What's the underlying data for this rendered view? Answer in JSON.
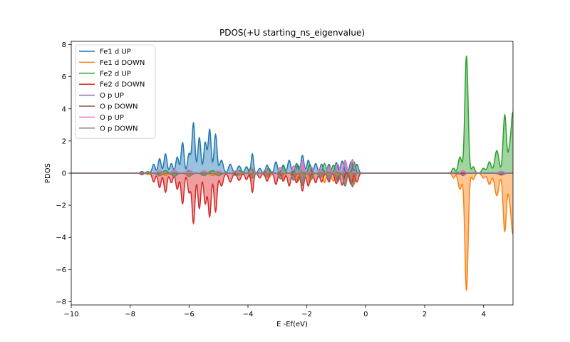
{
  "chart_data": {
    "type": "area",
    "title": "PDOS(+U starting_ns_eigenvalue)",
    "xlabel": "E -Ef(eV)",
    "ylabel": "PDOS",
    "xlim": [
      -10,
      5
    ],
    "ylim": [
      -8.2,
      8.2
    ],
    "xticks": [
      -10,
      -8,
      -6,
      -4,
      -2,
      0,
      2,
      4
    ],
    "yticks": [
      -8,
      -6,
      -4,
      -2,
      0,
      2,
      4,
      6,
      8
    ],
    "legend_position": "upper-left",
    "grid": false,
    "series": [
      {
        "name": "Fe1 d UP",
        "color": "#1f77b4",
        "sign": 1,
        "peaks": [
          [
            -7.6,
            0.1,
            0.05
          ],
          [
            -7.2,
            0.55,
            0.05
          ],
          [
            -7.0,
            0.9,
            0.05
          ],
          [
            -6.8,
            1.2,
            0.05
          ],
          [
            -6.6,
            0.6,
            0.05
          ],
          [
            -6.4,
            1.0,
            0.05
          ],
          [
            -6.22,
            1.9,
            0.05
          ],
          [
            -6.0,
            1.2,
            0.05
          ],
          [
            -5.85,
            3.1,
            0.05
          ],
          [
            -5.65,
            2.2,
            0.05
          ],
          [
            -5.45,
            1.9,
            0.05
          ],
          [
            -5.3,
            2.7,
            0.05
          ],
          [
            -5.1,
            2.4,
            0.05
          ],
          [
            -4.9,
            0.8,
            0.06
          ],
          [
            -4.6,
            0.55,
            0.06
          ],
          [
            -4.3,
            0.45,
            0.06
          ],
          [
            -4.05,
            0.4,
            0.05
          ],
          [
            -3.85,
            1.2,
            0.04
          ],
          [
            -3.6,
            0.3,
            0.05
          ],
          [
            -3.35,
            0.5,
            0.05
          ],
          [
            -3.05,
            0.7,
            0.05
          ],
          [
            -2.8,
            0.5,
            0.05
          ],
          [
            -2.6,
            0.8,
            0.05
          ],
          [
            -2.35,
            0.6,
            0.05
          ],
          [
            -2.15,
            1.1,
            0.05
          ],
          [
            -1.95,
            0.8,
            0.05
          ],
          [
            -1.7,
            0.6,
            0.05
          ],
          [
            -1.5,
            0.55,
            0.05
          ],
          [
            -1.25,
            0.55,
            0.05
          ],
          [
            -1.0,
            0.65,
            0.05
          ],
          [
            -0.8,
            0.75,
            0.05
          ],
          [
            -0.5,
            0.7,
            0.05
          ],
          [
            -0.3,
            0.55,
            0.05
          ],
          [
            3.1,
            0.05,
            0.06
          ],
          [
            4.6,
            0.08,
            0.1
          ]
        ]
      },
      {
        "name": "Fe1 d DOWN",
        "color": "#ff7f0e",
        "sign": -1,
        "peaks": [
          [
            -7.4,
            0.1,
            0.05
          ],
          [
            -6.8,
            0.15,
            0.08
          ],
          [
            -6.0,
            0.15,
            0.1
          ],
          [
            -5.2,
            0.15,
            0.1
          ],
          [
            -4.3,
            0.15,
            0.1
          ],
          [
            -3.9,
            0.35,
            0.05
          ],
          [
            -3.3,
            0.3,
            0.06
          ],
          [
            -2.8,
            0.4,
            0.06
          ],
          [
            -2.3,
            0.5,
            0.06
          ],
          [
            -1.9,
            0.55,
            0.05
          ],
          [
            -1.4,
            0.6,
            0.05
          ],
          [
            -1.1,
            0.5,
            0.05
          ],
          [
            -0.7,
            0.8,
            0.05
          ],
          [
            -0.4,
            0.7,
            0.05
          ],
          [
            2.98,
            0.3,
            0.05
          ],
          [
            3.2,
            1.0,
            0.06
          ],
          [
            3.42,
            7.3,
            0.055
          ],
          [
            3.65,
            0.4,
            0.05
          ],
          [
            4.0,
            0.3,
            0.06
          ],
          [
            4.2,
            0.7,
            0.06
          ],
          [
            4.45,
            1.4,
            0.07
          ],
          [
            4.72,
            3.6,
            0.055
          ],
          [
            4.9,
            1.6,
            0.06
          ],
          [
            5.0,
            3.3,
            0.05
          ]
        ]
      },
      {
        "name": "Fe2 d UP",
        "color": "#2ca02c",
        "sign": 1,
        "peaks": [
          [
            -7.4,
            0.1,
            0.05
          ],
          [
            -6.8,
            0.15,
            0.08
          ],
          [
            -6.0,
            0.15,
            0.1
          ],
          [
            -5.2,
            0.15,
            0.1
          ],
          [
            -4.3,
            0.15,
            0.1
          ],
          [
            -3.9,
            0.35,
            0.05
          ],
          [
            -3.3,
            0.3,
            0.06
          ],
          [
            -2.8,
            0.4,
            0.06
          ],
          [
            -2.3,
            0.5,
            0.06
          ],
          [
            -1.9,
            0.55,
            0.05
          ],
          [
            -1.4,
            0.6,
            0.05
          ],
          [
            -1.1,
            0.5,
            0.05
          ],
          [
            -0.7,
            0.8,
            0.05
          ],
          [
            -0.4,
            0.7,
            0.05
          ],
          [
            2.98,
            0.3,
            0.05
          ],
          [
            3.2,
            1.0,
            0.06
          ],
          [
            3.42,
            7.3,
            0.055
          ],
          [
            3.65,
            0.4,
            0.05
          ],
          [
            4.0,
            0.3,
            0.06
          ],
          [
            4.2,
            0.7,
            0.06
          ],
          [
            4.45,
            1.4,
            0.07
          ],
          [
            4.72,
            3.6,
            0.055
          ],
          [
            4.9,
            1.6,
            0.06
          ],
          [
            5.0,
            3.3,
            0.05
          ]
        ]
      },
      {
        "name": "Fe2 d DOWN",
        "color": "#d62728",
        "sign": -1,
        "peaks": [
          [
            -7.6,
            0.1,
            0.05
          ],
          [
            -7.2,
            0.55,
            0.05
          ],
          [
            -7.0,
            0.9,
            0.05
          ],
          [
            -6.8,
            1.2,
            0.05
          ],
          [
            -6.6,
            0.6,
            0.05
          ],
          [
            -6.4,
            1.0,
            0.05
          ],
          [
            -6.22,
            1.9,
            0.05
          ],
          [
            -6.0,
            1.2,
            0.05
          ],
          [
            -5.85,
            3.1,
            0.05
          ],
          [
            -5.65,
            2.2,
            0.05
          ],
          [
            -5.45,
            1.9,
            0.05
          ],
          [
            -5.3,
            2.7,
            0.05
          ],
          [
            -5.1,
            2.4,
            0.05
          ],
          [
            -4.9,
            0.8,
            0.06
          ],
          [
            -4.6,
            0.55,
            0.06
          ],
          [
            -4.3,
            0.45,
            0.06
          ],
          [
            -4.05,
            0.4,
            0.05
          ],
          [
            -3.85,
            1.2,
            0.04
          ],
          [
            -3.6,
            0.3,
            0.05
          ],
          [
            -3.35,
            0.5,
            0.05
          ],
          [
            -3.05,
            0.7,
            0.05
          ],
          [
            -2.8,
            0.5,
            0.05
          ],
          [
            -2.6,
            0.8,
            0.05
          ],
          [
            -2.35,
            0.6,
            0.05
          ],
          [
            -2.15,
            1.1,
            0.05
          ],
          [
            -1.95,
            0.8,
            0.05
          ],
          [
            -1.7,
            0.6,
            0.05
          ],
          [
            -1.5,
            0.55,
            0.05
          ],
          [
            -1.25,
            0.55,
            0.05
          ],
          [
            -1.0,
            0.65,
            0.05
          ],
          [
            -0.8,
            0.75,
            0.05
          ],
          [
            -0.5,
            0.7,
            0.05
          ],
          [
            -0.3,
            0.55,
            0.05
          ],
          [
            3.1,
            0.05,
            0.06
          ],
          [
            4.6,
            0.08,
            0.1
          ]
        ]
      },
      {
        "name": "O p UP",
        "color": "#9467bd",
        "sign": 1,
        "peaks": [
          [
            -7.0,
            0.15,
            0.08
          ],
          [
            -6.5,
            0.2,
            0.08
          ],
          [
            -6.0,
            0.2,
            0.08
          ],
          [
            -5.5,
            0.15,
            0.08
          ],
          [
            -5.0,
            0.15,
            0.08
          ],
          [
            -4.4,
            0.15,
            0.08
          ],
          [
            -3.85,
            0.3,
            0.05
          ],
          [
            -3.4,
            0.25,
            0.05
          ],
          [
            -2.9,
            0.35,
            0.05
          ],
          [
            -2.45,
            0.45,
            0.05
          ],
          [
            -2.15,
            0.75,
            0.05
          ],
          [
            -1.85,
            0.4,
            0.05
          ],
          [
            -1.55,
            0.3,
            0.05
          ],
          [
            -1.25,
            0.4,
            0.05
          ],
          [
            -0.95,
            0.55,
            0.05
          ],
          [
            -0.7,
            0.8,
            0.05
          ],
          [
            -0.45,
            0.85,
            0.05
          ],
          [
            3.3,
            0.15,
            0.06
          ],
          [
            4.6,
            0.12,
            0.08
          ]
        ]
      },
      {
        "name": "O p DOWN",
        "color": "#8c564b",
        "sign": -1,
        "peaks": [
          [
            -7.0,
            0.15,
            0.08
          ],
          [
            -6.5,
            0.2,
            0.08
          ],
          [
            -6.0,
            0.2,
            0.08
          ],
          [
            -5.5,
            0.15,
            0.08
          ],
          [
            -5.0,
            0.15,
            0.08
          ],
          [
            -4.4,
            0.15,
            0.08
          ],
          [
            -3.85,
            0.3,
            0.05
          ],
          [
            -3.4,
            0.25,
            0.05
          ],
          [
            -2.9,
            0.35,
            0.05
          ],
          [
            -2.45,
            0.45,
            0.05
          ],
          [
            -2.15,
            0.75,
            0.05
          ],
          [
            -1.85,
            0.4,
            0.05
          ],
          [
            -1.55,
            0.3,
            0.05
          ],
          [
            -1.25,
            0.4,
            0.05
          ],
          [
            -0.95,
            0.55,
            0.05
          ],
          [
            -0.7,
            0.8,
            0.05
          ],
          [
            -0.45,
            0.85,
            0.05
          ],
          [
            3.3,
            0.15,
            0.06
          ],
          [
            4.6,
            0.12,
            0.08
          ]
        ]
      },
      {
        "name": "O p UP",
        "color": "#e377c2",
        "sign": 1,
        "peaks": [
          [
            -7.0,
            0.15,
            0.08
          ],
          [
            -6.5,
            0.2,
            0.08
          ],
          [
            -6.0,
            0.2,
            0.08
          ],
          [
            -5.5,
            0.15,
            0.08
          ],
          [
            -5.0,
            0.15,
            0.08
          ],
          [
            -4.4,
            0.15,
            0.08
          ],
          [
            -3.85,
            0.3,
            0.05
          ],
          [
            -3.4,
            0.25,
            0.05
          ],
          [
            -2.9,
            0.35,
            0.05
          ],
          [
            -2.45,
            0.45,
            0.05
          ],
          [
            -2.15,
            0.75,
            0.05
          ],
          [
            -1.85,
            0.4,
            0.05
          ],
          [
            -1.55,
            0.3,
            0.05
          ],
          [
            -1.25,
            0.4,
            0.05
          ],
          [
            -0.95,
            0.55,
            0.05
          ],
          [
            -0.7,
            0.8,
            0.05
          ],
          [
            -0.45,
            0.85,
            0.05
          ],
          [
            3.3,
            0.15,
            0.06
          ],
          [
            4.6,
            0.12,
            0.08
          ]
        ]
      },
      {
        "name": "O p DOWN",
        "color": "#7f7f7f",
        "sign": -1,
        "peaks": [
          [
            -7.0,
            0.15,
            0.08
          ],
          [
            -6.5,
            0.2,
            0.08
          ],
          [
            -6.0,
            0.2,
            0.08
          ],
          [
            -5.5,
            0.15,
            0.08
          ],
          [
            -5.0,
            0.15,
            0.08
          ],
          [
            -4.4,
            0.15,
            0.08
          ],
          [
            -3.85,
            0.3,
            0.05
          ],
          [
            -3.4,
            0.25,
            0.05
          ],
          [
            -2.9,
            0.35,
            0.05
          ],
          [
            -2.45,
            0.45,
            0.05
          ],
          [
            -2.15,
            0.75,
            0.05
          ],
          [
            -1.85,
            0.4,
            0.05
          ],
          [
            -1.55,
            0.3,
            0.05
          ],
          [
            -1.25,
            0.4,
            0.05
          ],
          [
            -0.95,
            0.55,
            0.05
          ],
          [
            -0.7,
            0.8,
            0.05
          ],
          [
            -0.45,
            0.85,
            0.05
          ],
          [
            3.3,
            0.15,
            0.06
          ],
          [
            4.6,
            0.12,
            0.08
          ]
        ]
      }
    ]
  }
}
